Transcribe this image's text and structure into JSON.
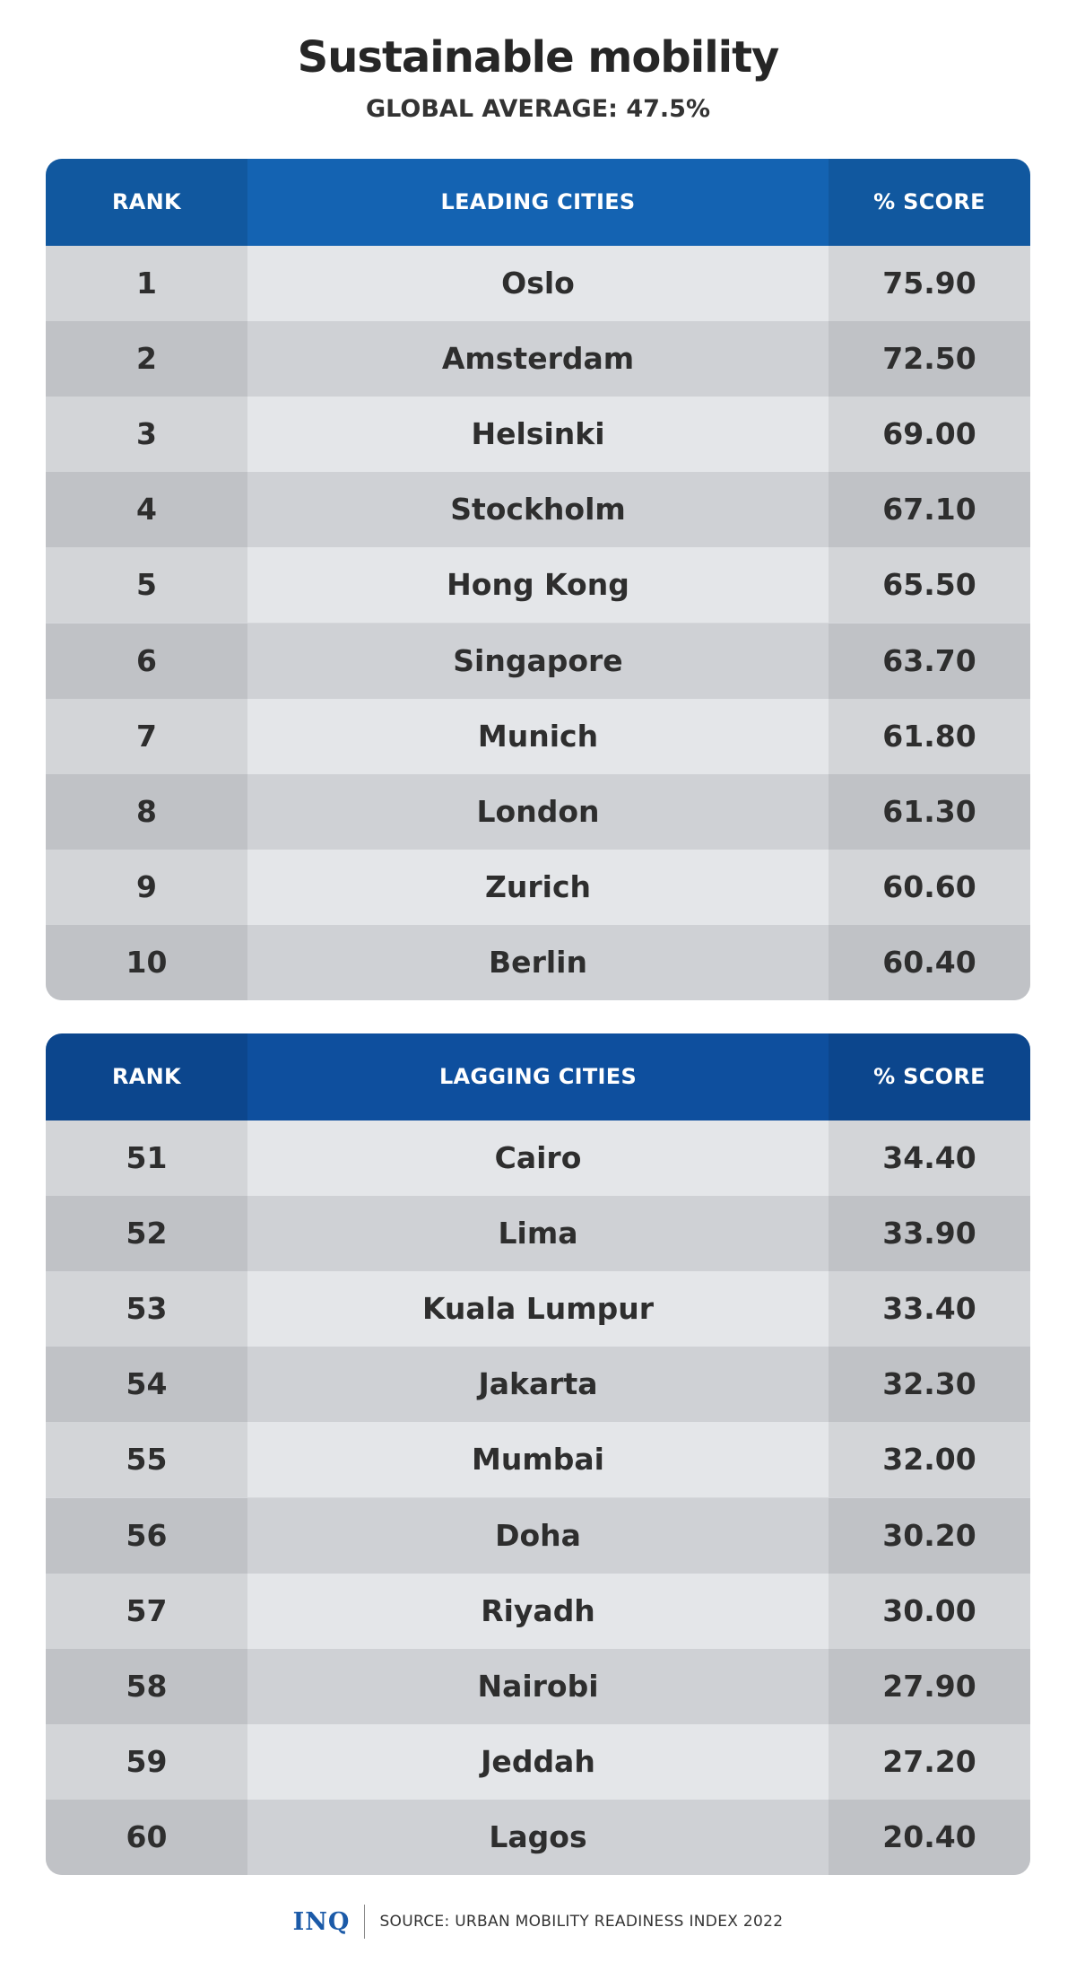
{
  "title": "Sustainable mobility",
  "subtitle": "GLOBAL AVERAGE: 47.5%",
  "colors": {
    "leading_header": "#1463b2",
    "lagging_header": "#0e4f9e",
    "row_light": "#e4e6e9",
    "row_dark": "#cfd1d5",
    "logo": "#1b5aa8"
  },
  "chart_data": [
    {
      "type": "table",
      "columns": [
        "RANK",
        "LEADING CITIES",
        "% SCORE"
      ],
      "rows": [
        [
          "1",
          "Oslo",
          "75.90"
        ],
        [
          "2",
          "Amsterdam",
          "72.50"
        ],
        [
          "3",
          "Helsinki",
          "69.00"
        ],
        [
          "4",
          "Stockholm",
          "67.10"
        ],
        [
          "5",
          "Hong Kong",
          "65.50"
        ],
        [
          "6",
          "Singapore",
          "63.70"
        ],
        [
          "7",
          "Munich",
          "61.80"
        ],
        [
          "8",
          "London",
          "61.30"
        ],
        [
          "9",
          "Zurich",
          "60.60"
        ],
        [
          "10",
          "Berlin",
          "60.40"
        ]
      ]
    },
    {
      "type": "table",
      "columns": [
        "RANK",
        "LAGGING CITIES",
        "% SCORE"
      ],
      "rows": [
        [
          "51",
          "Cairo",
          "34.40"
        ],
        [
          "52",
          "Lima",
          "33.90"
        ],
        [
          "53",
          "Kuala Lumpur",
          "33.40"
        ],
        [
          "54",
          "Jakarta",
          "32.30"
        ],
        [
          "55",
          "Mumbai",
          "32.00"
        ],
        [
          "56",
          "Doha",
          "30.20"
        ],
        [
          "57",
          "Riyadh",
          "30.00"
        ],
        [
          "58",
          "Nairobi",
          "27.90"
        ],
        [
          "59",
          "Jeddah",
          "27.20"
        ],
        [
          "60",
          "Lagos",
          "20.40"
        ]
      ]
    }
  ],
  "footer": {
    "logo": "INQ",
    "source": "SOURCE: URBAN MOBILITY READINESS INDEX 2022"
  }
}
